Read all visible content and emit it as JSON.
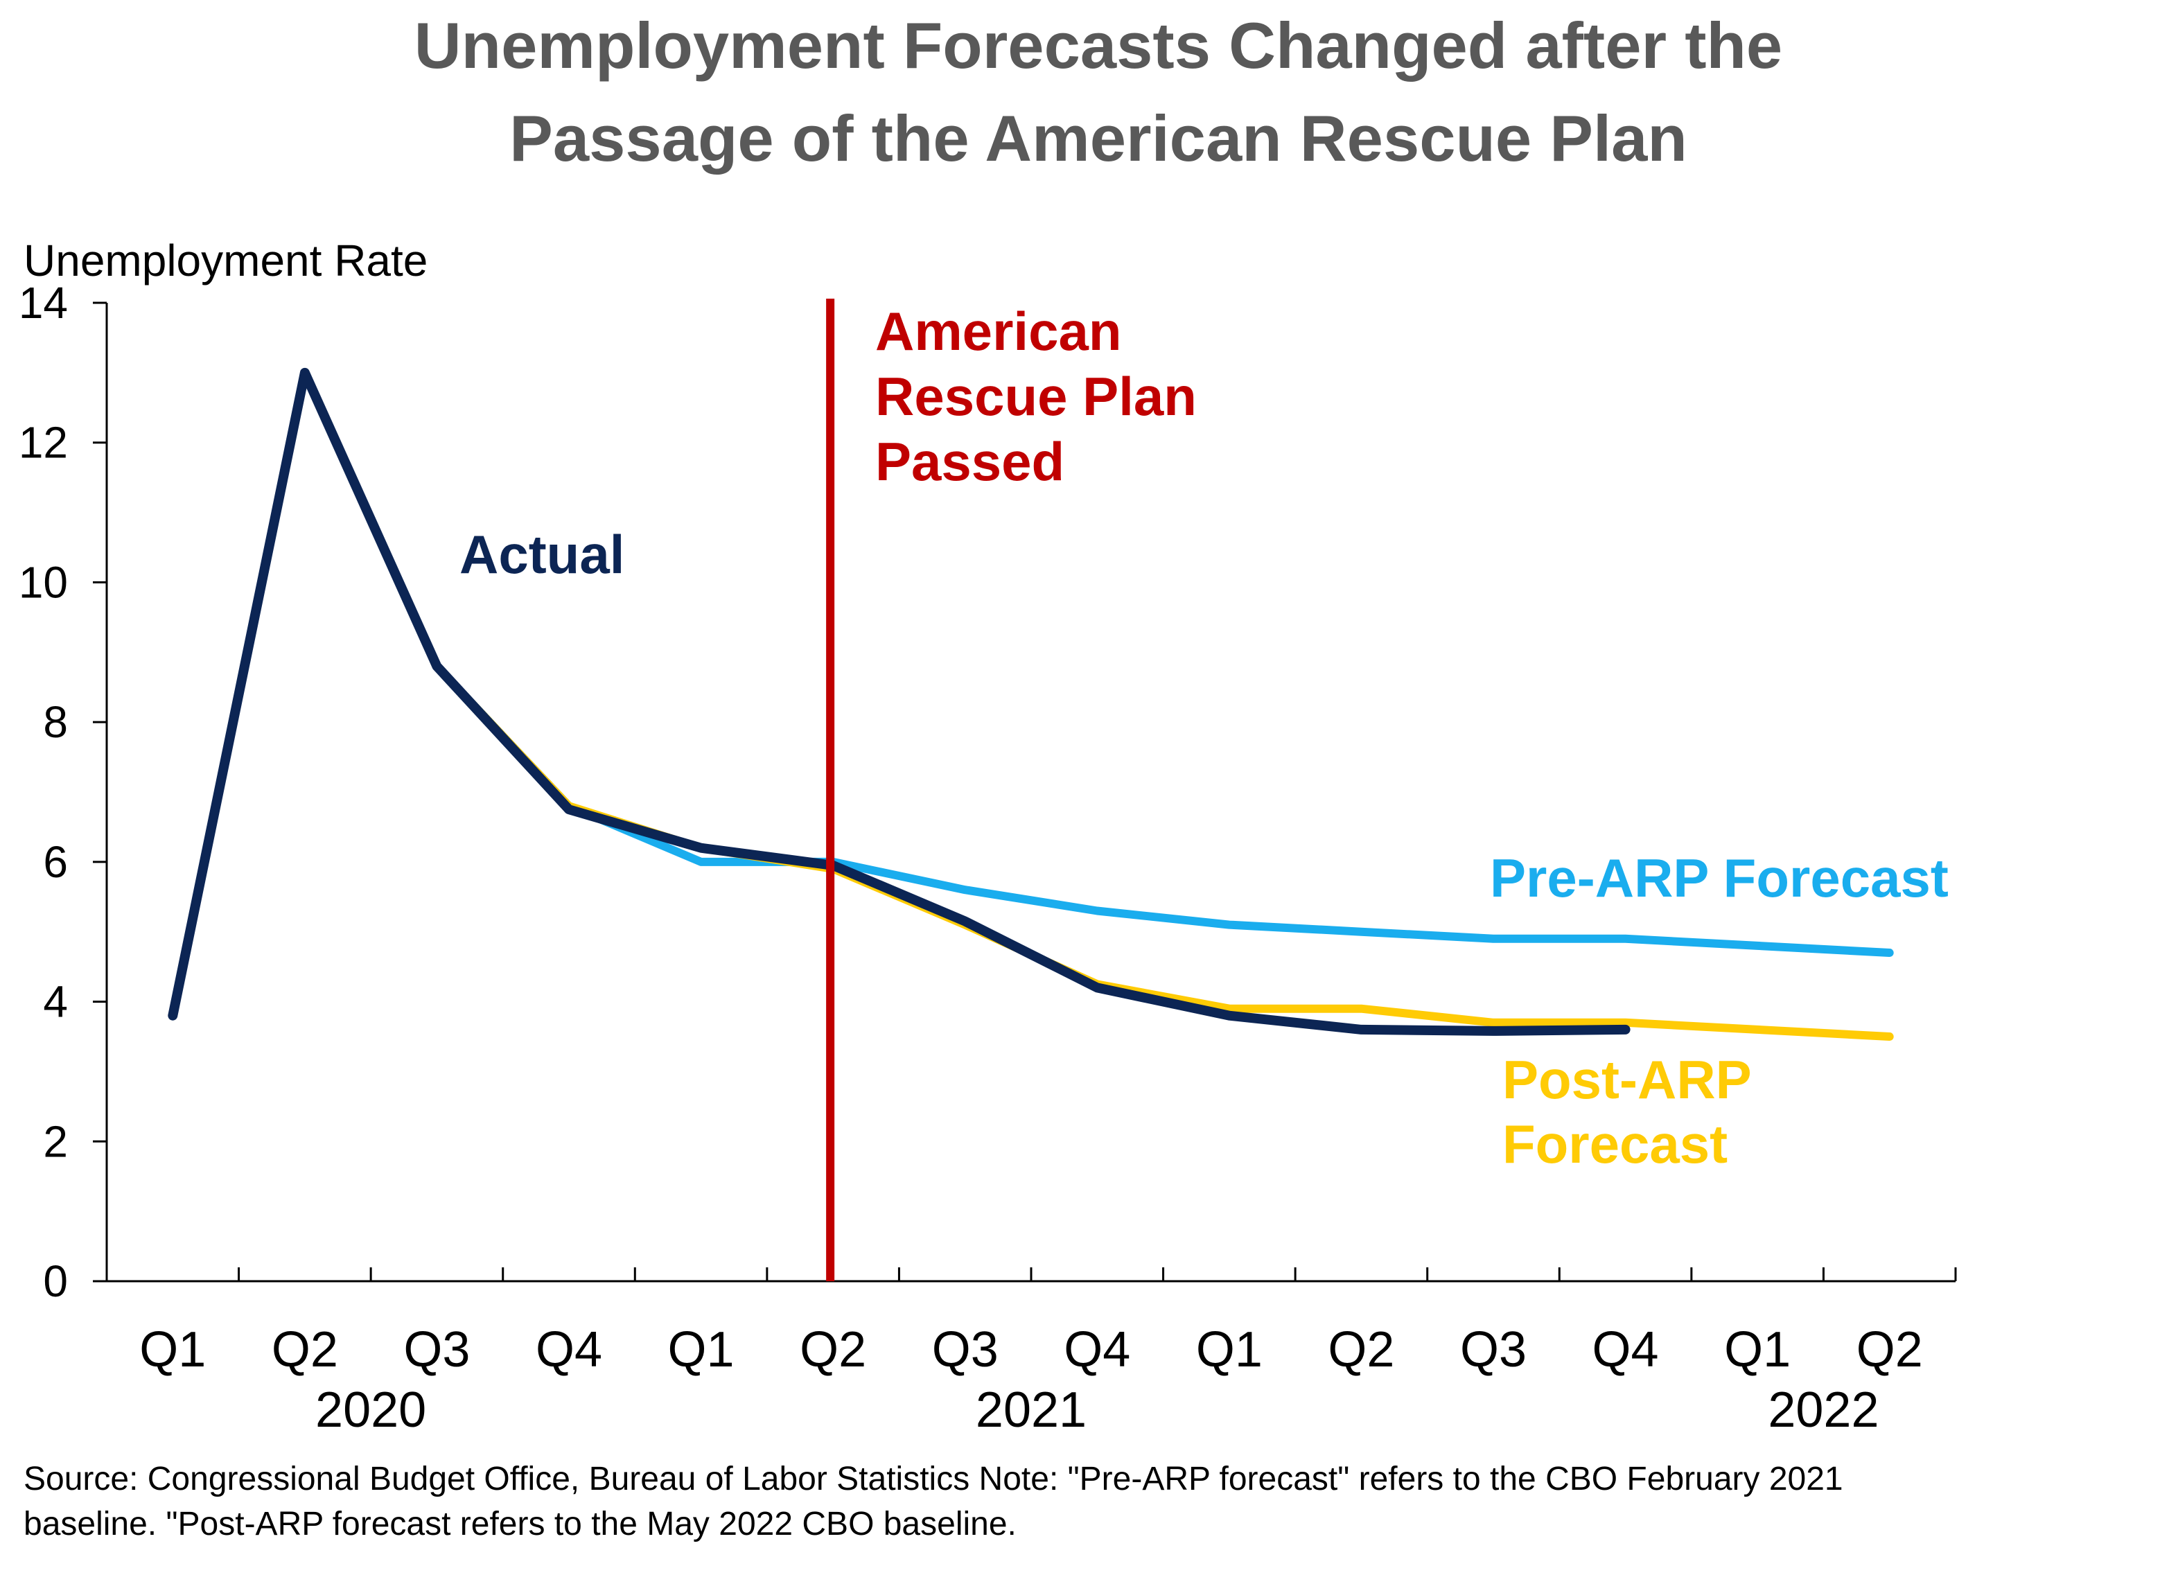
{
  "chart_data": {
    "type": "line",
    "title_line1": "Unemployment Forecasts Changed after the",
    "title_line2": "Passage of the American Rescue Plan",
    "ylabel": "Unemployment Rate",
    "xlabel": "",
    "ylim": [
      0,
      14
    ],
    "yticks": [
      0,
      2,
      4,
      6,
      8,
      10,
      12,
      14
    ],
    "grid": false,
    "categories": [
      "Q1",
      "Q2",
      "Q3",
      "Q4",
      "Q1",
      "Q2",
      "Q3",
      "Q4",
      "Q1",
      "Q2",
      "Q3",
      "Q4",
      "Q1",
      "Q2"
    ],
    "year_labels": [
      {
        "label": "2020",
        "category_index": 1.5
      },
      {
        "label": "2021",
        "category_index": 6.5
      },
      {
        "label": "2022",
        "category_index": 12.5
      }
    ],
    "series": [
      {
        "name": "Pre-ARP Forecast",
        "color": "#1AADEE",
        "values": [
          3.8,
          13.0,
          8.8,
          6.8,
          6.0,
          6.0,
          5.6,
          5.3,
          5.1,
          5.0,
          4.9,
          4.9,
          4.8,
          4.7
        ]
      },
      {
        "name": "Post-ARP Forecast",
        "color": "#FFCB05",
        "values": [
          3.8,
          13.0,
          8.8,
          6.8,
          6.2,
          5.9,
          5.1,
          4.25,
          3.9,
          3.9,
          3.7,
          3.7,
          3.6,
          3.5
        ]
      },
      {
        "name": "Actual",
        "color": "#0C2554",
        "values": [
          3.8,
          13.0,
          8.8,
          6.75,
          6.2,
          5.95,
          5.15,
          4.2,
          3.8,
          3.6,
          3.58,
          3.6,
          null,
          null
        ]
      }
    ],
    "annotation": {
      "lines": [
        "American",
        "Rescue Plan",
        "Passed"
      ],
      "color": "#C00000",
      "x_position": 5.0
    }
  },
  "source_note_line1": "Source: Congressional Budget Office, Bureau of Labor Statistics Note: \"Pre-ARP forecast\" refers to the CBO February 2021",
  "source_note_line2": "baseline. \"Post-ARP forecast refers to the May 2022 CBO baseline."
}
